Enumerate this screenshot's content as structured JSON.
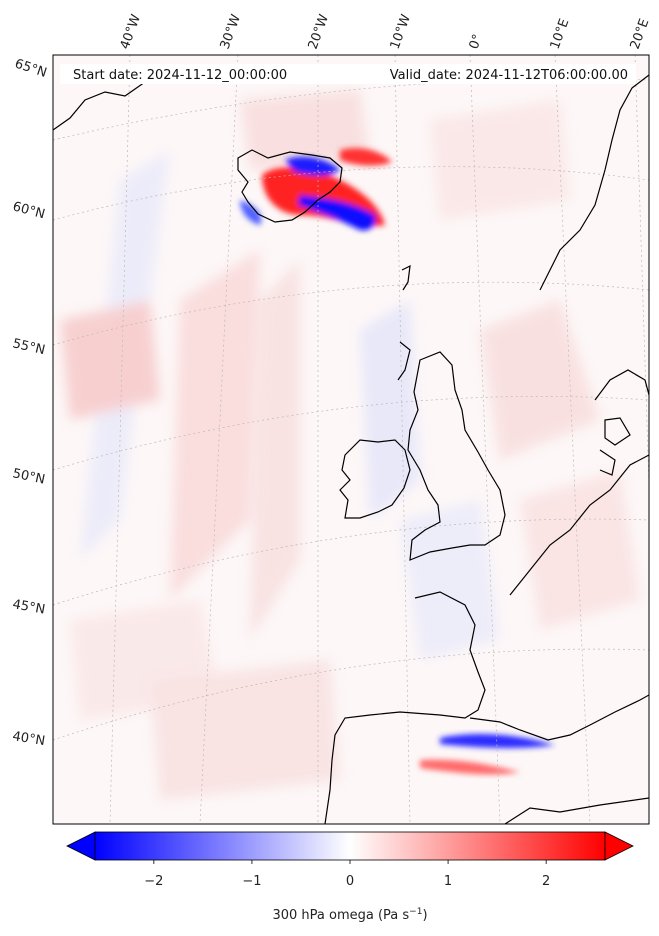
{
  "header": {
    "start_date": "Start date: 2024-11-12_00:00:00",
    "valid_date": "Valid_date: 2024-11-12T06:00:00.00"
  },
  "lon_labels": [
    {
      "text": "40°W"
    },
    {
      "text": "30°W"
    },
    {
      "text": "20°W"
    },
    {
      "text": "10°W"
    },
    {
      "text": "0°"
    },
    {
      "text": "10°E"
    },
    {
      "text": "20°E"
    }
  ],
  "lat_labels": [
    {
      "text": "65°N"
    },
    {
      "text": "60°N"
    },
    {
      "text": "55°N"
    },
    {
      "text": "50°N"
    },
    {
      "text": "45°N"
    },
    {
      "text": "40°N"
    }
  ],
  "colorbar": {
    "title": "300 hPa omega (Pa s",
    "title_unit_exp": "−1",
    "title_close": ")",
    "ticks": [
      "−2",
      "−1",
      "0",
      "1",
      "2"
    ],
    "tick_values": [
      -2,
      -1,
      0,
      1,
      2
    ],
    "range": [
      -2.6,
      2.6
    ],
    "colormap": "bwr",
    "extend": "both"
  },
  "colors": {
    "negative": "#0000ff",
    "neutral": "#ffffff",
    "positive": "#ff0000",
    "coast": "#000000"
  }
}
